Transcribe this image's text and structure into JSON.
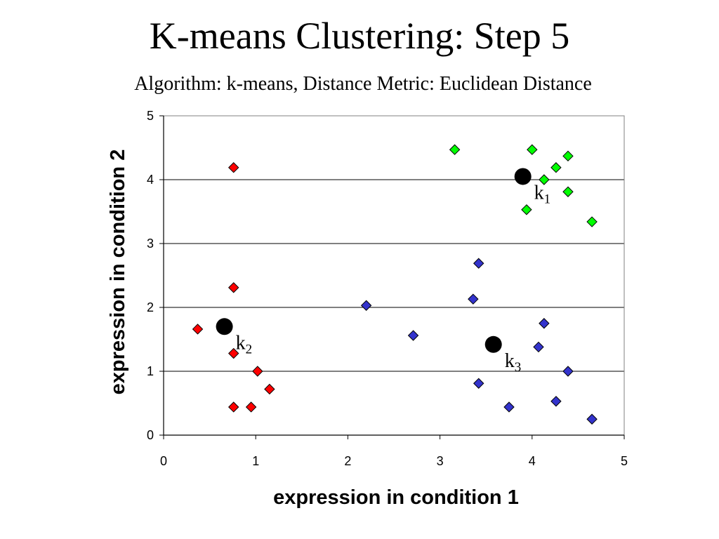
{
  "title": "K-means Clustering: Step 5",
  "subtitle": "Algorithm: k-means, Distance Metric: Euclidean Distance",
  "chart_data": {
    "type": "scatter",
    "title": "K-means Clustering: Step 5",
    "subtitle": "Algorithm: k-means, Distance Metric: Euclidean Distance",
    "xlabel": "expression in condition 1",
    "ylabel": "expression in condition 2",
    "xlim": [
      0,
      5
    ],
    "ylim": [
      0,
      5
    ],
    "xticks": [
      "0",
      "1",
      "2",
      "3",
      "4",
      "5"
    ],
    "yticks": [
      "0",
      "1",
      "2",
      "3",
      "4",
      "5"
    ],
    "grid": "horizontal",
    "marker": "diamond",
    "series": [
      {
        "color": "#00ff00",
        "points": [
          [
            3.16,
            4.47
          ],
          [
            4.0,
            4.47
          ],
          [
            4.39,
            4.37
          ],
          [
            4.26,
            4.19
          ],
          [
            4.13,
            4.0
          ],
          [
            4.39,
            3.81
          ],
          [
            3.94,
            3.53
          ],
          [
            4.65,
            3.34
          ]
        ]
      },
      {
        "color": "#ff0000",
        "points": [
          [
            0.76,
            4.19
          ],
          [
            0.76,
            2.31
          ],
          [
            0.37,
            1.66
          ],
          [
            0.76,
            1.28
          ],
          [
            1.02,
            1.0
          ],
          [
            1.15,
            0.72
          ],
          [
            0.76,
            0.44
          ],
          [
            0.95,
            0.44
          ]
        ]
      },
      {
        "color": "#3333cc",
        "points": [
          [
            2.2,
            2.03
          ],
          [
            3.42,
            2.69
          ],
          [
            3.36,
            2.13
          ],
          [
            2.71,
            1.56
          ],
          [
            4.13,
            1.75
          ],
          [
            4.07,
            1.38
          ],
          [
            4.39,
            1.0
          ],
          [
            3.42,
            0.81
          ],
          [
            3.75,
            0.44
          ],
          [
            4.26,
            0.53
          ],
          [
            4.65,
            0.25
          ]
        ]
      }
    ],
    "centroids": [
      {
        "label": "k",
        "subscript": "1",
        "x": 3.9,
        "y": 4.05
      },
      {
        "label": "k",
        "subscript": "2",
        "x": 0.66,
        "y": 1.7
      },
      {
        "label": "k",
        "subscript": "3",
        "x": 3.58,
        "y": 1.42
      }
    ]
  }
}
